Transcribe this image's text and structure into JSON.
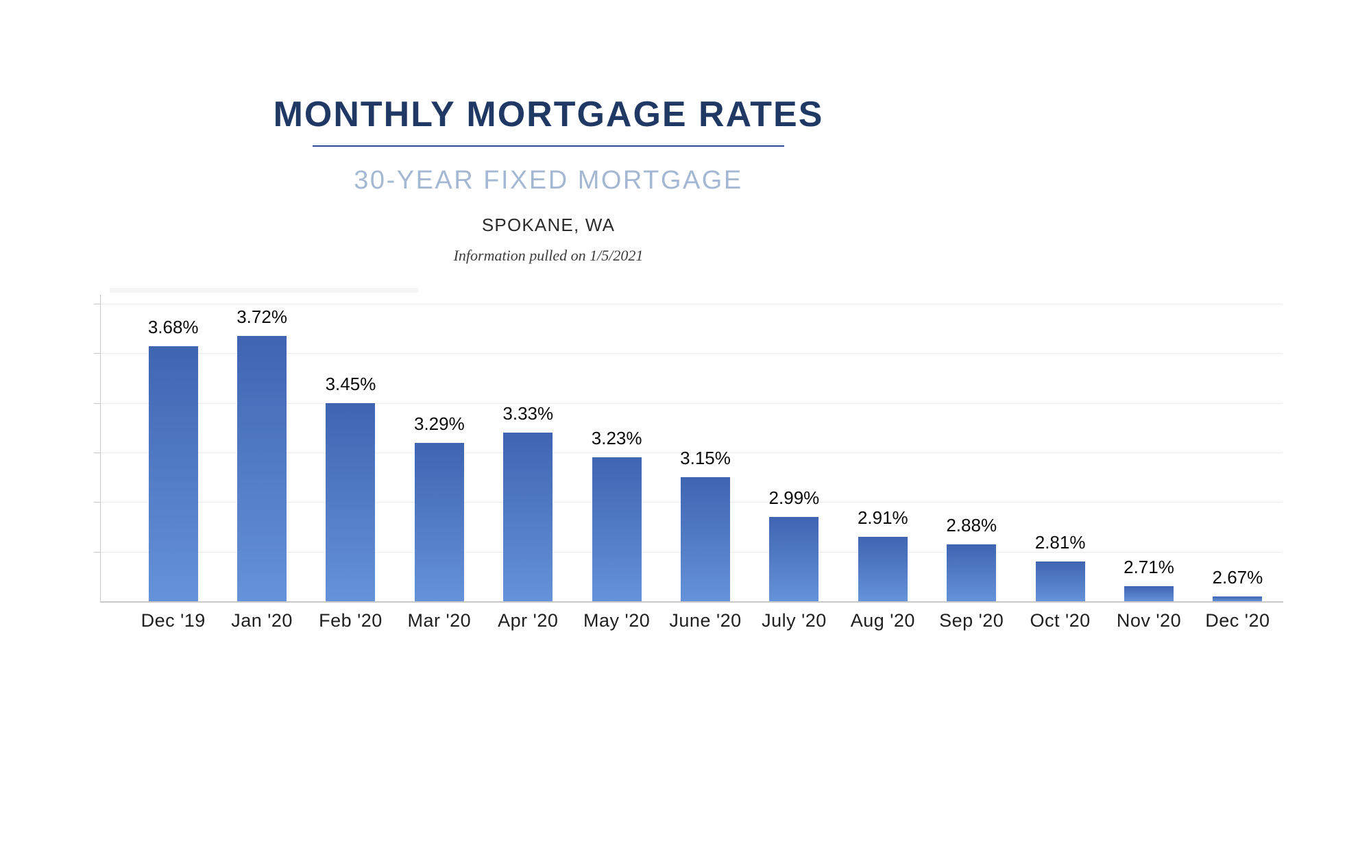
{
  "header": {
    "title": "MONTHLY MORTGAGE RATES",
    "subtitle": "30-YEAR FIXED MORTGAGE",
    "location": "SPOKANE, WA",
    "note": "Information pulled on 1/5/2021"
  },
  "colors": {
    "title": "#1f3864",
    "title_rule": "#2e4b8f",
    "subtitle": "#a4b8d3",
    "bar_top": "#3f65b2",
    "bar_bottom": "#6592d8",
    "axis": "#c8c8c8",
    "gridline": "#ececec"
  },
  "chart_data": {
    "type": "bar",
    "title": "MONTHLY MORTGAGE RATES",
    "subtitle": "30-YEAR FIXED MORTGAGE",
    "location": "SPOKANE, WA",
    "note": "Information pulled on 1/5/2021",
    "categories": [
      "Dec '19",
      "Jan '20",
      "Feb '20",
      "Mar '20",
      "Apr '20",
      "May '20",
      "June '20",
      "July '20",
      "Aug '20",
      "Sep '20",
      "Oct '20",
      "Nov '20",
      "Dec '20"
    ],
    "values": [
      3.68,
      3.72,
      3.45,
      3.29,
      3.33,
      3.23,
      3.15,
      2.99,
      2.91,
      2.88,
      2.81,
      2.71,
      2.67
    ],
    "value_labels": [
      "3.68%",
      "3.72%",
      "3.45%",
      "3.29%",
      "3.33%",
      "3.23%",
      "3.15%",
      "2.99%",
      "2.91%",
      "2.88%",
      "2.81%",
      "2.71%",
      "2.67%"
    ],
    "xlabel": "",
    "ylabel": "",
    "ylim": [
      2.65,
      3.9
    ],
    "gridline_values": [
      2.85,
      3.05,
      3.25,
      3.45,
      3.65,
      3.85
    ],
    "grid": true,
    "legend": "none",
    "y_axis_tick_labels_visible": false
  }
}
